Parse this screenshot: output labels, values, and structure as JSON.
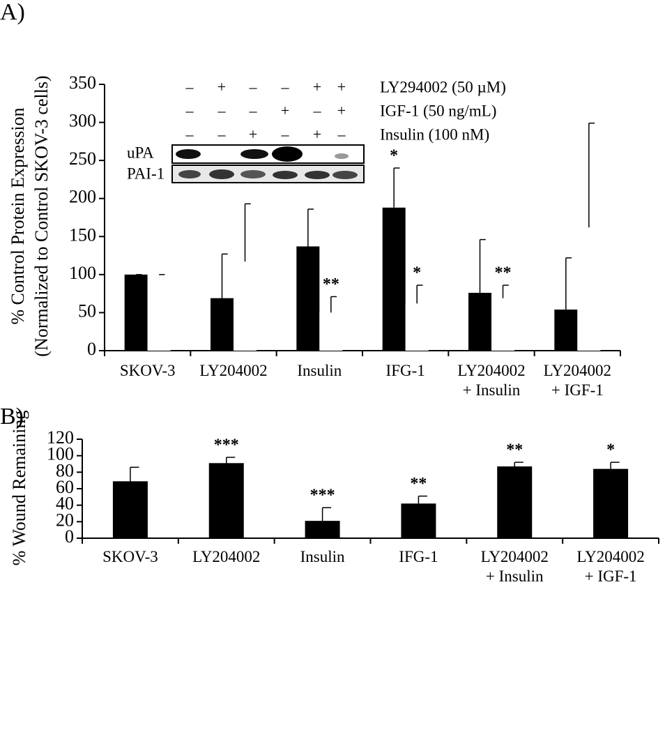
{
  "chart_data": [
    {
      "type": "bar",
      "panel": "A)",
      "ylabel": [
        "% Control Protein Expression",
        "(Normalized to Control SKOV-3 cells)"
      ],
      "categories": [
        "SKOV-3",
        "LY204002",
        "Insulin",
        "IFG-1",
        "LY204002\n+ Insulin",
        "LY204002\n+ IGF-1"
      ],
      "series": [
        {
          "color": "#000000",
          "values": [
            100,
            69,
            137,
            188,
            76,
            54
          ],
          "errors": [
            0,
            58,
            49,
            52,
            70,
            68
          ],
          "annotations": [
            null,
            null,
            null,
            "*",
            null,
            null
          ]
        },
        {
          "color": "#ffffff",
          "values": [
            100,
            117,
            50,
            62,
            69,
            162
          ],
          "errors": [
            0,
            76,
            21,
            24,
            17,
            137
          ],
          "annotations": [
            null,
            null,
            "**",
            "*",
            "**",
            null
          ]
        }
      ],
      "ylim": [
        0,
        350
      ],
      "yticks": [
        0,
        50,
        100,
        150,
        200,
        250,
        300,
        350
      ],
      "inset": {
        "rows": [
          {
            "label": "LY294002 (50 µM)",
            "signs": [
              "–",
              "+",
              "–",
              "–",
              "+",
              "+"
            ]
          },
          {
            "label": "IGF-1 (50 ng/mL)",
            "signs": [
              "–",
              "–",
              "–",
              "+",
              "–",
              "+"
            ]
          },
          {
            "label": "Insulin (100 nM)",
            "signs": [
              "–",
              "–",
              "+",
              "–",
              "+",
              "–"
            ]
          }
        ],
        "blots": [
          "uPA",
          "PAI-1"
        ]
      }
    },
    {
      "type": "bar",
      "panel": "B)",
      "ylabel": [
        "% Wound Remaining"
      ],
      "categories": [
        "SKOV-3",
        "LY204002",
        "Insulin",
        "IFG-1",
        "LY204002\n+ Insulin",
        "LY204002\n+ IGF-1"
      ],
      "series": [
        {
          "color": "#000000",
          "values": [
            69,
            91,
            21,
            42,
            87,
            84
          ],
          "errors": [
            17,
            7,
            16,
            9,
            5,
            8
          ],
          "annotations": [
            null,
            "***",
            "***",
            "**",
            "**",
            "*"
          ]
        }
      ],
      "ylim": [
        0,
        120
      ],
      "yticks": [
        0,
        20,
        40,
        60,
        80,
        100,
        120
      ]
    }
  ]
}
